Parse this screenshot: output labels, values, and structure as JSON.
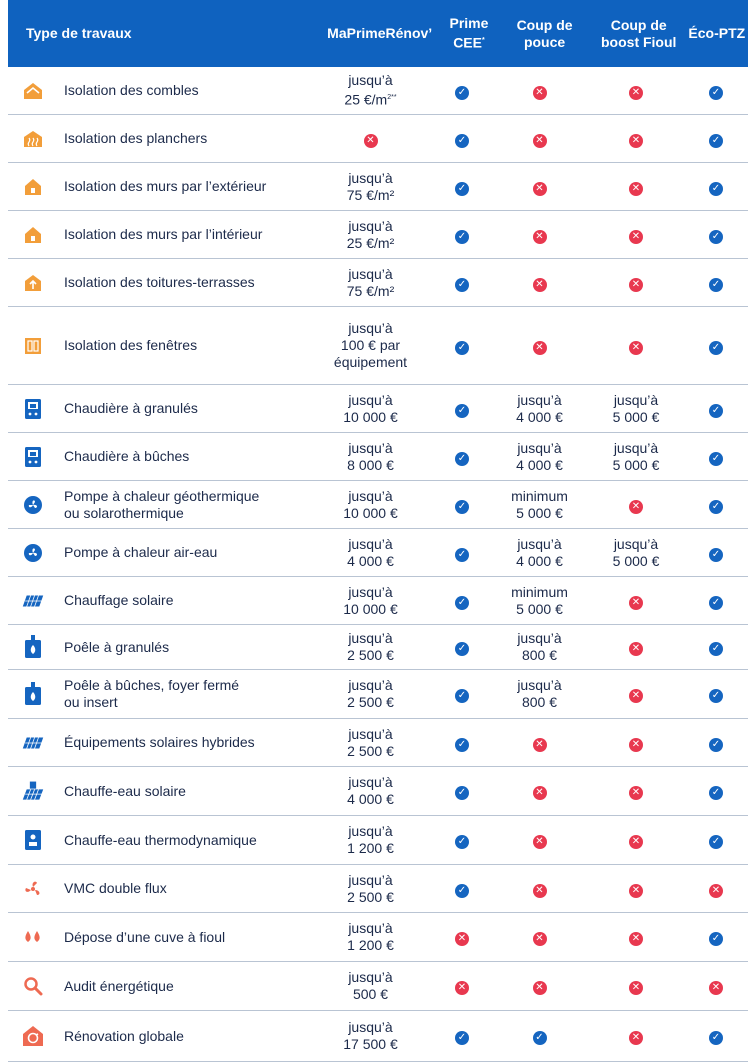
{
  "header": {
    "type": "Type de travaux",
    "mpr": "MaPrimeRénov’",
    "cee": "Prime CEE",
    "cee_sup": "*",
    "cdp": "Coup de pouce",
    "boost": "Coup de boost Fioul",
    "eco": "Éco-PTZ"
  },
  "colors": {
    "header_bg": "#0f62bf",
    "yes": "#1565c0",
    "no": "#e8384f",
    "orange": "#f29e3a",
    "blue_icon": "#1565c0",
    "salmon": "#ee6a52"
  },
  "rows": [
    {
      "icon": "roof-house-icon",
      "label": "Isolation des combles",
      "mpr": "jusqu’à\n25 €/m²**",
      "cee": "yes",
      "cdp": "no",
      "boost": "no",
      "eco": "yes"
    },
    {
      "icon": "floor-heat-icon",
      "label": "Isolation des planchers",
      "mpr": "no",
      "cee": "yes",
      "cdp": "no",
      "boost": "no",
      "eco": "yes"
    },
    {
      "icon": "house-icon",
      "label": "Isolation des murs par l’extérieur",
      "mpr": "jusqu’à\n75 €/m²",
      "cee": "yes",
      "cdp": "no",
      "boost": "no",
      "eco": "yes"
    },
    {
      "icon": "house-icon",
      "label": "Isolation des murs par l’intérieur",
      "mpr": "jusqu’à\n25 €/m²",
      "cee": "yes",
      "cdp": "no",
      "boost": "no",
      "eco": "yes"
    },
    {
      "icon": "house-arrow-icon",
      "label": "Isolation des toitures-terrasses",
      "mpr": "jusqu’à\n75 €/m²",
      "cee": "yes",
      "cdp": "no",
      "boost": "no",
      "eco": "yes"
    },
    {
      "icon": "window-icon",
      "label": "Isolation des fenêtres",
      "mpr": "jusqu’à\n100 € par\néquipement",
      "cee": "yes",
      "cdp": "no",
      "boost": "no",
      "eco": "yes"
    },
    {
      "icon": "boiler-icon",
      "label": "Chaudière à granulés",
      "mpr": "jusqu’à\n10 000 €",
      "cee": "yes",
      "cdp": "jusqu’à\n4 000 €",
      "boost": "jusqu’à\n5 000 €",
      "eco": "yes"
    },
    {
      "icon": "boiler-icon",
      "label": "Chaudière à bûches",
      "mpr": "jusqu’à\n8 000 €",
      "cee": "yes",
      "cdp": "jusqu’à\n4 000 €",
      "boost": "jusqu’à\n5 000 €",
      "eco": "yes"
    },
    {
      "icon": "fan-icon",
      "label": "Pompe à chaleur géothermique\nou solarothermique",
      "mpr": "jusqu’à\n10 000 €",
      "cee": "yes",
      "cdp": "minimum\n5 000 €",
      "boost": "no",
      "eco": "yes"
    },
    {
      "icon": "fan-icon",
      "label": "Pompe à chaleur air-eau",
      "mpr": "jusqu’à\n4 000 €",
      "cee": "yes",
      "cdp": "jusqu’à\n4 000 €",
      "boost": "jusqu’à\n5 000 €",
      "eco": "yes"
    },
    {
      "icon": "solar-panel-icon",
      "label": "Chauffage solaire",
      "mpr": "jusqu’à\n10 000 €",
      "cee": "yes",
      "cdp": "minimum\n5 000 €",
      "boost": "no",
      "eco": "yes"
    },
    {
      "icon": "stove-icon",
      "label": "Poêle à granulés",
      "mpr": "jusqu’à\n2 500 €",
      "cee": "yes",
      "cdp": "jusqu’à\n800 €",
      "boost": "no",
      "eco": "yes"
    },
    {
      "icon": "stove-icon",
      "label": "Poêle à bûches, foyer fermé\nou insert",
      "mpr": "jusqu’à\n2 500 €",
      "cee": "yes",
      "cdp": "jusqu’à\n800 €",
      "boost": "no",
      "eco": "yes"
    },
    {
      "icon": "solar-panel-icon",
      "label": "Équipements solaires hybrides",
      "mpr": "jusqu’à\n2 500 €",
      "cee": "yes",
      "cdp": "no",
      "boost": "no",
      "eco": "yes"
    },
    {
      "icon": "solar-heater-icon",
      "label": "Chauffe-eau solaire",
      "mpr": "jusqu’à\n4 000 €",
      "cee": "yes",
      "cdp": "no",
      "boost": "no",
      "eco": "yes"
    },
    {
      "icon": "water-heater-icon",
      "label": "Chauffe-eau thermodynamique",
      "mpr": "jusqu’à\n1 200 €",
      "cee": "yes",
      "cdp": "no",
      "boost": "no",
      "eco": "yes"
    },
    {
      "icon": "vmc-fan-icon",
      "label": "VMC double flux",
      "mpr": "jusqu’à\n2 500 €",
      "cee": "yes",
      "cdp": "no",
      "boost": "no",
      "eco": "no"
    },
    {
      "icon": "drops-icon",
      "label": "Dépose d’une cuve à fioul",
      "mpr": "jusqu’à\n1 200 €",
      "cee": "no",
      "cdp": "no",
      "boost": "no",
      "eco": "yes"
    },
    {
      "icon": "magnifier-icon",
      "label": "Audit énergétique",
      "mpr": "jusqu’à\n500 €",
      "cee": "no",
      "cdp": "no",
      "boost": "no",
      "eco": "no"
    },
    {
      "icon": "renovation-icon",
      "label": "Rénovation globale",
      "mpr": "jusqu’à\n17 500 €",
      "cee": "yes",
      "cdp": "yes",
      "boost": "no",
      "eco": "yes"
    }
  ]
}
